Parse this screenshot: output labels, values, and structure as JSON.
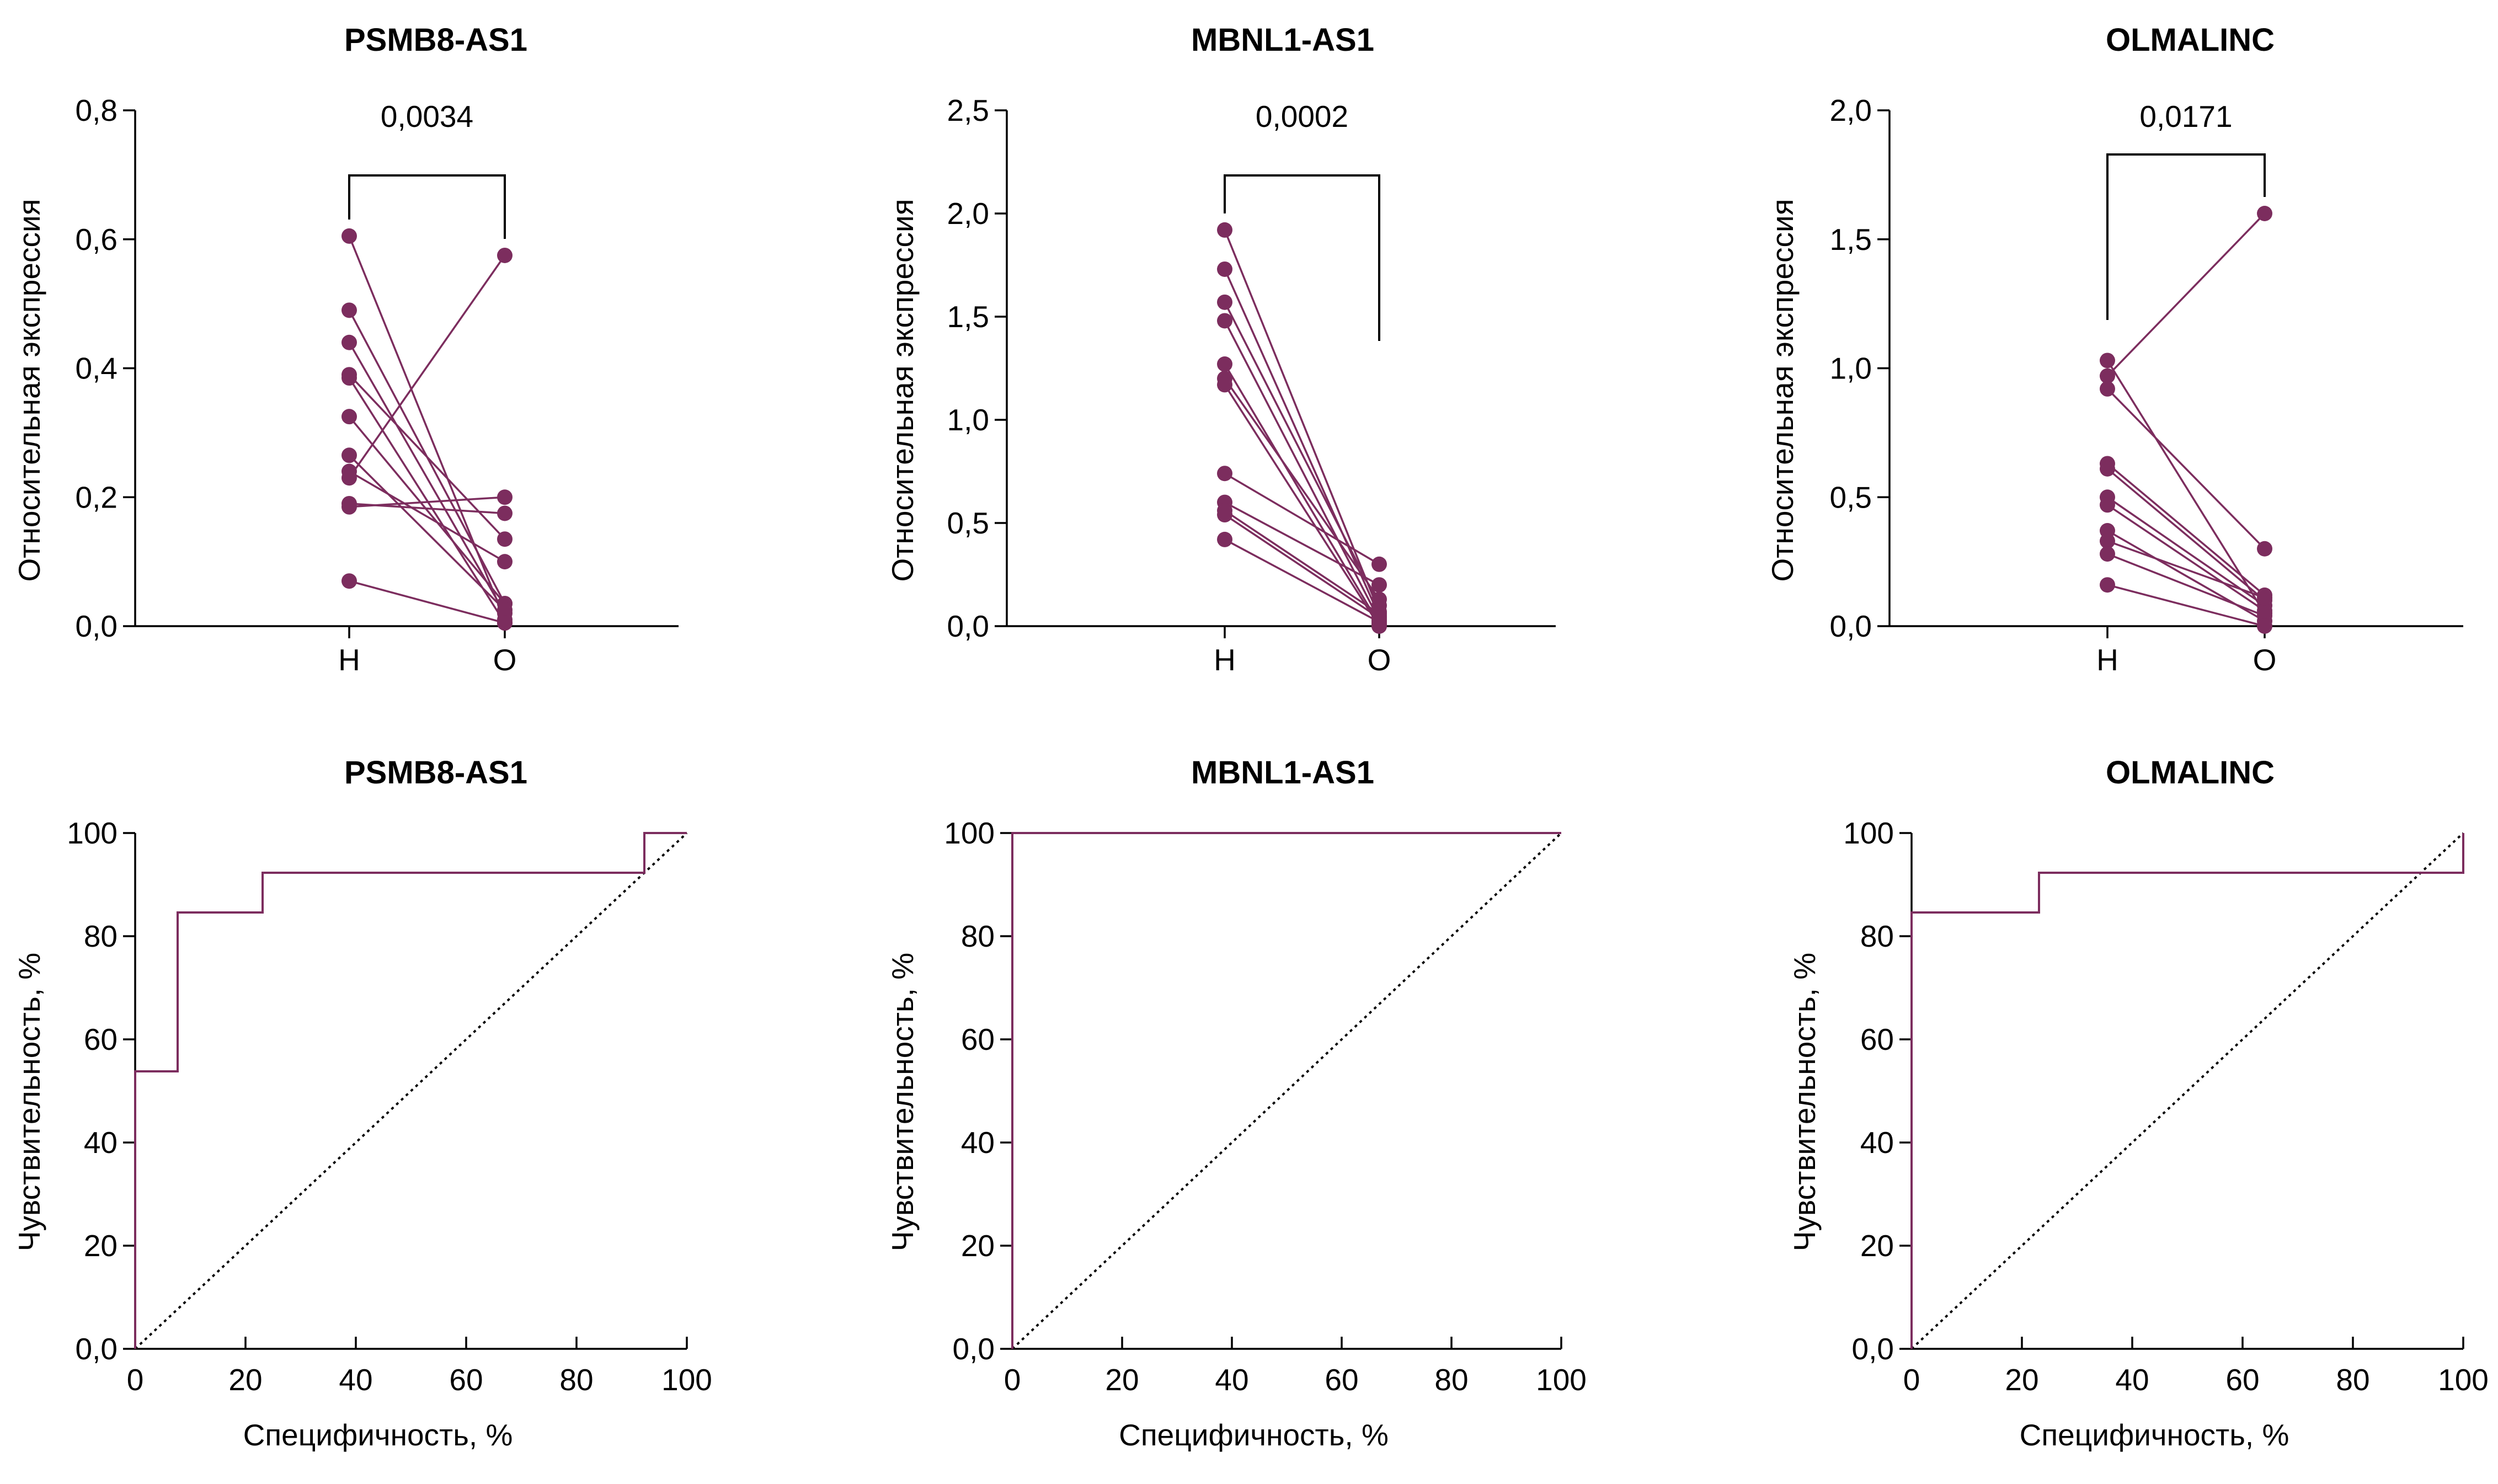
{
  "chart_data": [
    {
      "type": "line",
      "title": "PSMB8-AS1",
      "ylabel": "Относительная экспрессия",
      "categories": [
        "Н",
        "О"
      ],
      "ylim": [
        0,
        0.8
      ],
      "yticks": [
        "0,0",
        "0,2",
        "0,4",
        "0,6",
        "0,8"
      ],
      "yticks_values": [
        0,
        0.2,
        0.4,
        0.6,
        0.8
      ],
      "p_value": "0,0034",
      "pairs": [
        [
          0.605,
          0.01
        ],
        [
          0.49,
          0.035
        ],
        [
          0.44,
          0.02
        ],
        [
          0.39,
          0.135
        ],
        [
          0.385,
          0.005
        ],
        [
          0.325,
          0.035
        ],
        [
          0.265,
          0.025
        ],
        [
          0.24,
          0.1
        ],
        [
          0.23,
          0.575
        ],
        [
          0.19,
          0.175
        ],
        [
          0.185,
          0.2
        ],
        [
          0.07,
          0.005
        ]
      ]
    },
    {
      "type": "line",
      "title": "MBNL1-AS1",
      "ylabel": "Относительная экспрессия",
      "categories": [
        "Н",
        "О"
      ],
      "ylim": [
        0,
        2.5
      ],
      "yticks": [
        "0,0",
        "0,5",
        "1,0",
        "1,5",
        "2,0",
        "2,5"
      ],
      "yticks_values": [
        0,
        0.5,
        1.0,
        1.5,
        2.0,
        2.5
      ],
      "p_value": "0,0002",
      "pairs": [
        [
          1.92,
          0.07
        ],
        [
          1.73,
          0.05
        ],
        [
          1.57,
          0.1
        ],
        [
          1.48,
          0.03
        ],
        [
          1.27,
          0.01
        ],
        [
          1.2,
          0.13
        ],
        [
          1.17,
          0.0
        ],
        [
          0.74,
          0.3
        ],
        [
          0.6,
          0.2
        ],
        [
          0.56,
          0.06
        ],
        [
          0.54,
          0.04
        ],
        [
          0.42,
          0.02
        ]
      ]
    },
    {
      "type": "line",
      "title": "OLMALINC",
      "ylabel": "Относительная экспрессия",
      "categories": [
        "Н",
        "О"
      ],
      "ylim": [
        0,
        2.0
      ],
      "yticks": [
        "0,0",
        "0,5",
        "1,0",
        "1,5",
        "2,0"
      ],
      "yticks_values": [
        0,
        0.5,
        1.0,
        1.5,
        2.0
      ],
      "p_value": "0,0171",
      "pairs": [
        [
          1.03,
          0.05
        ],
        [
          0.97,
          1.6
        ],
        [
          0.92,
          0.3
        ],
        [
          0.63,
          0.12
        ],
        [
          0.61,
          0.1
        ],
        [
          0.5,
          0.08
        ],
        [
          0.47,
          0.06
        ],
        [
          0.37,
          0.02
        ],
        [
          0.33,
          0.11
        ],
        [
          0.28,
          0.04
        ],
        [
          0.16,
          0.0
        ]
      ]
    },
    {
      "type": "line",
      "title": "PSMB8-AS1",
      "xlabel": "Специфичность, %",
      "ylabel": "Чувствительность, %",
      "xlim": [
        0,
        100
      ],
      "ylim": [
        0,
        100
      ],
      "xticks": [
        "0",
        "20",
        "40",
        "60",
        "80",
        "100"
      ],
      "yticks": [
        "0,0",
        "20",
        "40",
        "60",
        "80",
        "100"
      ],
      "roc_points": [
        [
          0,
          0
        ],
        [
          0,
          53.8
        ],
        [
          7.7,
          53.8
        ],
        [
          7.7,
          84.6
        ],
        [
          23.1,
          84.6
        ],
        [
          23.1,
          92.3
        ],
        [
          92.3,
          92.3
        ],
        [
          92.3,
          100
        ],
        [
          100,
          100
        ]
      ]
    },
    {
      "type": "line",
      "title": "MBNL1-AS1",
      "xlabel": "Специфичность, %",
      "ylabel": "Чувствительность, %",
      "xlim": [
        0,
        100
      ],
      "ylim": [
        0,
        100
      ],
      "xticks": [
        "0",
        "20",
        "40",
        "60",
        "80",
        "100"
      ],
      "yticks": [
        "0,0",
        "20",
        "40",
        "60",
        "80",
        "100"
      ],
      "roc_points": [
        [
          0,
          0
        ],
        [
          0,
          100
        ],
        [
          100,
          100
        ]
      ]
    },
    {
      "type": "line",
      "title": "OLMALINC",
      "xlabel": "Специфичность, %",
      "ylabel": "Чувствительность, %",
      "xlim": [
        0,
        100
      ],
      "ylim": [
        0,
        100
      ],
      "xticks": [
        "0",
        "20",
        "40",
        "60",
        "80",
        "100"
      ],
      "yticks": [
        "0,0",
        "20",
        "40",
        "60",
        "80",
        "100"
      ],
      "roc_points": [
        [
          0,
          0
        ],
        [
          0,
          84.6
        ],
        [
          23.1,
          84.6
        ],
        [
          23.1,
          92.3
        ],
        [
          100,
          92.3
        ],
        [
          100,
          100
        ]
      ]
    }
  ]
}
